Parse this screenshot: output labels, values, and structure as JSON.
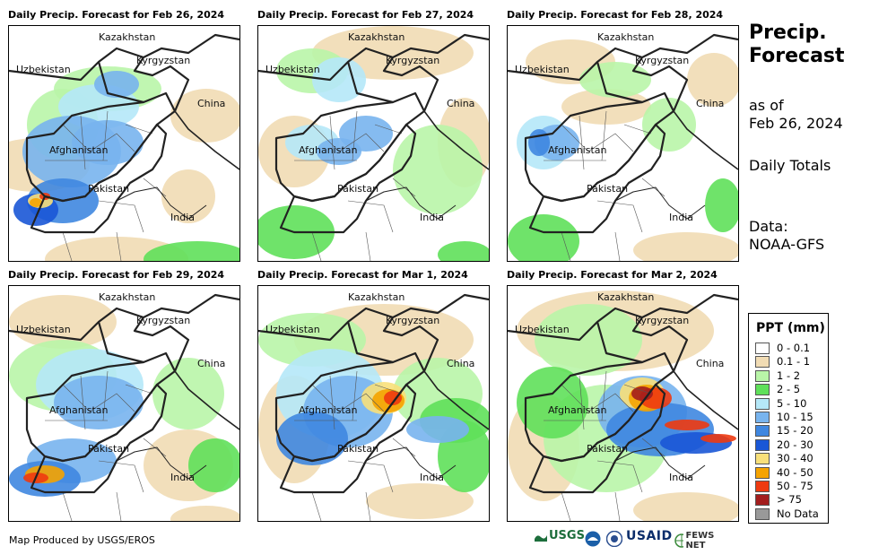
{
  "panels": [
    {
      "title": "Daily Precip. Forecast for Feb 26, 2024"
    },
    {
      "title": "Daily Precip. Forecast for Feb 27, 2024"
    },
    {
      "title": "Daily Precip. Forecast for Feb 28, 2024"
    },
    {
      "title": "Daily Precip. Forecast for Feb 29, 2024"
    },
    {
      "title": "Daily Precip. Forecast for Mar 1, 2024"
    },
    {
      "title": "Daily Precip. Forecast for Mar 2, 2024"
    }
  ],
  "map_labels": {
    "kazakhstan": "Kazakhstan",
    "uzbekistan": "Uzbekistan",
    "kyrgyzstan": "Kyrgyzstan",
    "china": "China",
    "afghanistan": "Afghanistan",
    "pakistan": "Pakistan",
    "india": "India"
  },
  "side": {
    "title_line1": "Precip.",
    "title_line2": "Forecast",
    "asof_line1": "as of",
    "asof_line2": "Feb 26, 2024",
    "period": "Daily Totals",
    "data_line1": "Data:",
    "data_line2": "NOAA-GFS"
  },
  "legend": {
    "title": "PPT (mm)",
    "items": [
      {
        "label": "0 - 0.1",
        "color": "#ffffff"
      },
      {
        "label": "0.1 - 1",
        "color": "#f1dcb4"
      },
      {
        "label": "1 - 2",
        "color": "#b9f5a8"
      },
      {
        "label": "2 - 5",
        "color": "#5fe05a"
      },
      {
        "label": "5 - 10",
        "color": "#b5e8f8"
      },
      {
        "label": "10 - 15",
        "color": "#78b4ee"
      },
      {
        "label": "15 - 20",
        "color": "#3f87e0"
      },
      {
        "label": "20 - 30",
        "color": "#1a57d6"
      },
      {
        "label": "30 - 40",
        "color": "#f8e07a"
      },
      {
        "label": "40 - 50",
        "color": "#f5a300"
      },
      {
        "label": "50 - 75",
        "color": "#ee3a10"
      },
      {
        "label": "> 75",
        "color": "#a31d1d"
      },
      {
        "label": "No Data",
        "color": "#999999"
      }
    ]
  },
  "footer": {
    "credit": "Map Produced by USGS/EROS",
    "logo_usgs": "USGS",
    "logo_usaid": "USAID",
    "logo_fews": "FEWS NET"
  }
}
